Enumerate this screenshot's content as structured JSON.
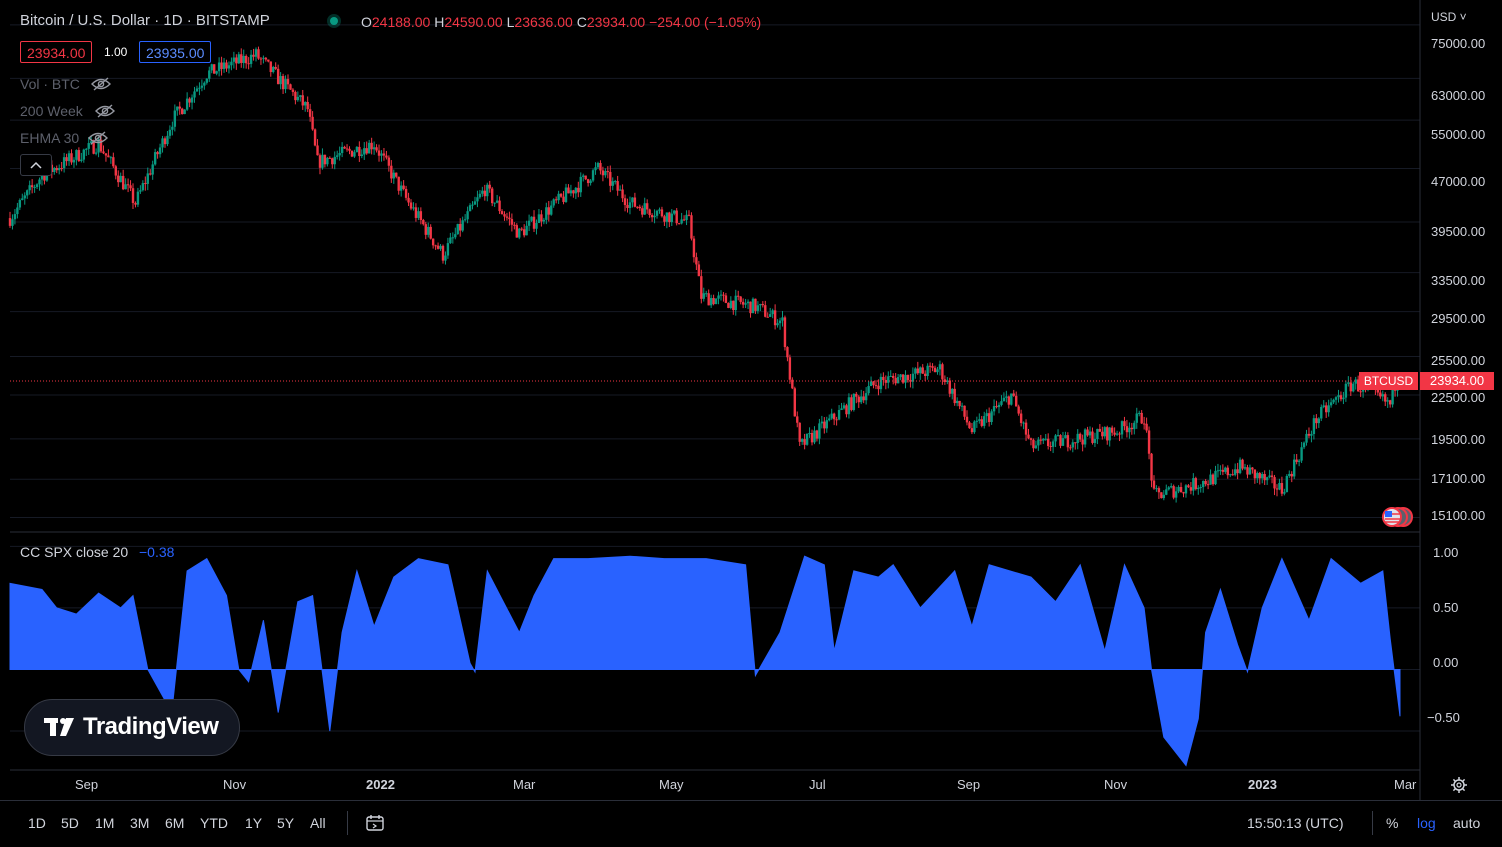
{
  "header": {
    "symbol_title": "Bitcoin / U.S. Dollar · 1D · BITSTAMP",
    "ohlc": {
      "o_key": "O",
      "o_val": "24188.00",
      "h_key": "H",
      "h_val": "24590.00",
      "l_key": "L",
      "l_val": "23636.00",
      "c_key": "C",
      "c_val": "23934.00",
      "change": "−254.00 (−1.05%)"
    },
    "bid": "23934.00",
    "spread": "1.00",
    "ask": "23935.00",
    "legend": [
      {
        "label": "Vol · BTC",
        "icon": "eye-crossed-icon"
      },
      {
        "label": "200 Week",
        "icon": "eye-crossed-icon"
      },
      {
        "label": "EHMA 30",
        "icon": "eye-crossed-icon"
      }
    ],
    "collapse_icon": "chevron-up-icon"
  },
  "indicator": {
    "title": "CC SPX close 20",
    "value": "−0.38"
  },
  "logo": {
    "text": "TradingView"
  },
  "price_axis": {
    "currency": "USD ˅",
    "labels": [
      "75000.00",
      "63000.00",
      "55000.00",
      "47000.00",
      "39500.00",
      "33500.00",
      "29500.00",
      "25500.00",
      "22500.00",
      "19500.00",
      "17100.00",
      "15100.00"
    ],
    "symbol_tag": "BTCUSD",
    "last_price": "23934.00"
  },
  "indicator_axis": {
    "labels": [
      "1.00",
      "0.50",
      "0.00",
      "−0.50"
    ]
  },
  "time_axis": {
    "labels": [
      "Sep",
      "Nov",
      "2022",
      "Mar",
      "May",
      "Jul",
      "Sep",
      "Nov",
      "2023",
      "Mar"
    ]
  },
  "toolbar": {
    "ranges": [
      "1D",
      "5D",
      "1M",
      "3M",
      "6M",
      "YTD",
      "1Y",
      "5Y",
      "All"
    ],
    "clock": "15:50:13 (UTC)",
    "percent": "%",
    "log": "log",
    "auto": "auto"
  },
  "colors": {
    "up": "#089981",
    "down": "#f23645",
    "indicator": "#2962ff",
    "background": "#000000"
  },
  "chart_data": [
    {
      "type": "candlestick",
      "title": "Bitcoin / U.S. Dollar · 1D · BITSTAMP",
      "scale": "log",
      "x_range": [
        "2021-08-01",
        "2023-02-17"
      ],
      "y_range": [
        14500,
        80000
      ],
      "last_close": 23934,
      "close_path": [
        [
          "2021-08-01",
          40000
        ],
        [
          "2021-08-14",
          46000
        ],
        [
          "2021-09-06",
          51000
        ],
        [
          "2021-09-21",
          42000
        ],
        [
          "2021-10-06",
          55000
        ],
        [
          "2021-10-20",
          64000
        ],
        [
          "2021-11-09",
          68000
        ],
        [
          "2021-11-30",
          57000
        ],
        [
          "2021-12-04",
          48000
        ],
        [
          "2021-12-27",
          51000
        ],
        [
          "2022-01-10",
          42000
        ],
        [
          "2022-01-24",
          35500
        ],
        [
          "2022-02-10",
          44000
        ],
        [
          "2022-02-24",
          38000
        ],
        [
          "2022-03-28",
          47000
        ],
        [
          "2022-04-10",
          42000
        ],
        [
          "2022-05-04",
          39500
        ],
        [
          "2022-05-09",
          31000
        ],
        [
          "2022-05-31",
          30000
        ],
        [
          "2022-06-11",
          28500
        ],
        [
          "2022-06-18",
          19000
        ],
        [
          "2022-07-08",
          21800
        ],
        [
          "2022-07-20",
          23500
        ],
        [
          "2022-08-14",
          24500
        ],
        [
          "2022-08-27",
          20000
        ],
        [
          "2022-09-12",
          22500
        ],
        [
          "2022-09-20",
          19000
        ],
        [
          "2022-10-25",
          20000
        ],
        [
          "2022-11-05",
          21000
        ],
        [
          "2022-11-09",
          16200
        ],
        [
          "2022-11-30",
          17000
        ],
        [
          "2022-12-14",
          17800
        ],
        [
          "2022-12-31",
          16550
        ],
        [
          "2023-01-14",
          20800
        ],
        [
          "2023-01-29",
          23400
        ],
        [
          "2023-02-13",
          21800
        ],
        [
          "2023-02-16",
          24100
        ],
        [
          "2023-02-17",
          23934
        ]
      ]
    },
    {
      "type": "area",
      "title": "CC SPX close 20",
      "y_range": [
        -0.8,
        1.1
      ],
      "last_value": -0.38,
      "points": [
        [
          "2021-08-01",
          0.7
        ],
        [
          "2021-08-14",
          0.65
        ],
        [
          "2021-08-20",
          0.5
        ],
        [
          "2021-08-28",
          0.45
        ],
        [
          "2021-09-06",
          0.62
        ],
        [
          "2021-09-15",
          0.5
        ],
        [
          "2021-09-20",
          0.6
        ],
        [
          "2021-09-26",
          0.0
        ],
        [
          "2021-10-03",
          -0.25
        ],
        [
          "2021-10-06",
          -0.3
        ],
        [
          "2021-10-12",
          0.8
        ],
        [
          "2021-10-20",
          0.9
        ],
        [
          "2021-10-28",
          0.6
        ],
        [
          "2021-11-02",
          0.0
        ],
        [
          "2021-11-06",
          -0.1
        ],
        [
          "2021-11-12",
          0.4
        ],
        [
          "2021-11-18",
          -0.35
        ],
        [
          "2021-11-26",
          0.55
        ],
        [
          "2021-12-02",
          0.6
        ],
        [
          "2021-12-09",
          -0.5
        ],
        [
          "2021-12-14",
          0.3
        ],
        [
          "2021-12-20",
          0.8
        ],
        [
          "2021-12-27",
          0.35
        ],
        [
          "2022-01-04",
          0.75
        ],
        [
          "2022-01-14",
          0.9
        ],
        [
          "2022-01-26",
          0.85
        ],
        [
          "2022-02-04",
          0.05
        ],
        [
          "2022-02-06",
          -0.02
        ],
        [
          "2022-02-11",
          0.8
        ],
        [
          "2022-02-24",
          0.3
        ],
        [
          "2022-03-02",
          0.6
        ],
        [
          "2022-03-10",
          0.9
        ],
        [
          "2022-03-24",
          0.9
        ],
        [
          "2022-04-10",
          0.92
        ],
        [
          "2022-04-24",
          0.9
        ],
        [
          "2022-05-11",
          0.9
        ],
        [
          "2022-05-27",
          0.85
        ],
        [
          "2022-05-31",
          -0.05
        ],
        [
          "2022-06-10",
          0.3
        ],
        [
          "2022-06-20",
          0.92
        ],
        [
          "2022-06-28",
          0.85
        ],
        [
          "2022-07-02",
          0.15
        ],
        [
          "2022-07-10",
          0.8
        ],
        [
          "2022-07-20",
          0.75
        ],
        [
          "2022-07-26",
          0.85
        ],
        [
          "2022-08-06",
          0.5
        ],
        [
          "2022-08-20",
          0.8
        ],
        [
          "2022-08-27",
          0.35
        ],
        [
          "2022-09-03",
          0.85
        ],
        [
          "2022-09-20",
          0.75
        ],
        [
          "2022-09-30",
          0.55
        ],
        [
          "2022-10-10",
          0.85
        ],
        [
          "2022-10-20",
          0.15
        ],
        [
          "2022-10-28",
          0.85
        ],
        [
          "2022-11-05",
          0.5
        ],
        [
          "2022-11-08",
          0.0
        ],
        [
          "2022-11-13",
          -0.55
        ],
        [
          "2022-11-22",
          -0.78
        ],
        [
          "2022-11-27",
          -0.4
        ],
        [
          "2022-11-30",
          0.3
        ],
        [
          "2022-12-06",
          0.65
        ],
        [
          "2022-12-13",
          0.2
        ],
        [
          "2022-12-17",
          -0.02
        ],
        [
          "2022-12-23",
          0.5
        ],
        [
          "2022-12-31",
          0.9
        ],
        [
          "2023-01-11",
          0.4
        ],
        [
          "2023-01-20",
          0.9
        ],
        [
          "2023-02-01",
          0.7
        ],
        [
          "2023-02-10",
          0.8
        ],
        [
          "2023-02-13",
          0.25
        ],
        [
          "2023-02-17",
          -0.38
        ]
      ]
    }
  ]
}
